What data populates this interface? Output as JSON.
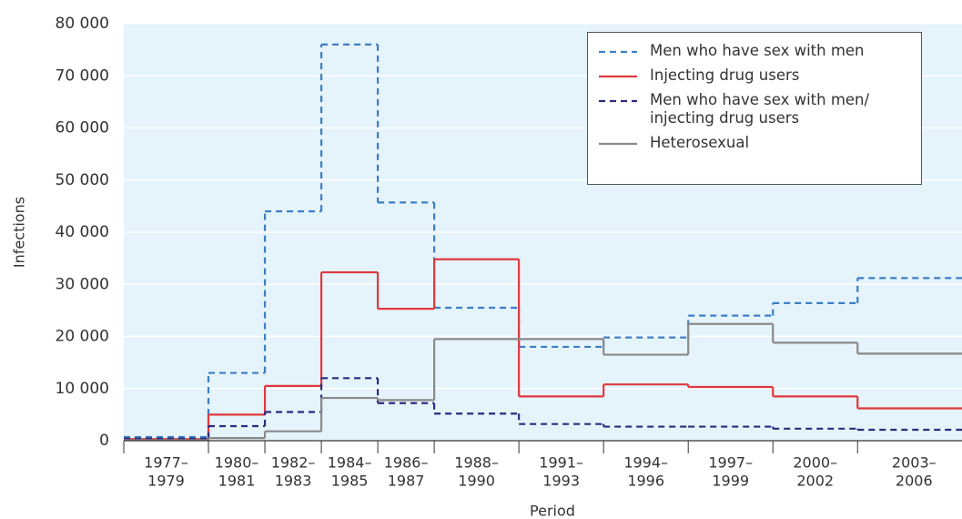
{
  "chart_data": {
    "type": "step",
    "y_label": "Infections",
    "x_label": "Period",
    "bins": [
      1977,
      1980,
      1982,
      1984,
      1986,
      1988,
      1991,
      1994,
      1997,
      2000,
      2003,
      2007
    ],
    "categories": [
      [
        "1977–",
        "1979"
      ],
      [
        "1980–",
        "1981"
      ],
      [
        "1982–",
        "1983"
      ],
      [
        "1984–",
        "1985"
      ],
      [
        "1986–",
        "1987"
      ],
      [
        "1988–",
        "1990"
      ],
      [
        "1991–",
        "1993"
      ],
      [
        "1994–",
        "1996"
      ],
      [
        "1997–",
        "1999"
      ],
      [
        "2000–",
        "2002"
      ],
      [
        "2003–",
        "2006"
      ]
    ],
    "xlim": [
      1977,
      2006.7
    ],
    "ylim": [
      0,
      80000
    ],
    "yticks": [
      {
        "value": 0,
        "label": "0"
      },
      {
        "value": 10000,
        "label": "10 000"
      },
      {
        "value": 20000,
        "label": "20 000"
      },
      {
        "value": 30000,
        "label": "30 000"
      },
      {
        "value": 40000,
        "label": "40 000"
      },
      {
        "value": 50000,
        "label": "50 000"
      },
      {
        "value": 60000,
        "label": "60 000"
      },
      {
        "value": 70000,
        "label": "70 000"
      },
      {
        "value": 80000,
        "label": "80 000"
      }
    ],
    "grid": true,
    "legend": "top-right",
    "series": [
      {
        "name": "Men who have sex with men",
        "color": "#3b7fc4",
        "dash": true,
        "values": [
          700,
          13000,
          44000,
          76000,
          45700,
          25500,
          18000,
          19800,
          24000,
          26400,
          31200
        ]
      },
      {
        "name": "Injecting drug users",
        "color": "#e0393e",
        "dash": false,
        "values": [
          300,
          5000,
          10500,
          32300,
          25300,
          34800,
          8500,
          10800,
          10300,
          8500,
          6200
        ]
      },
      {
        "name": "Men who have sex with men/ injecting drug users",
        "color": "#2b2c7c",
        "dash": true,
        "values": [
          400,
          2800,
          5500,
          12000,
          7200,
          5200,
          3200,
          2700,
          2700,
          2300,
          2100
        ]
      },
      {
        "name": "Heterosexual",
        "color": "#8a8a8a",
        "dash": false,
        "values": [
          100,
          500,
          1800,
          8200,
          7800,
          19500,
          19500,
          16500,
          22400,
          18800,
          16700
        ]
      }
    ]
  }
}
